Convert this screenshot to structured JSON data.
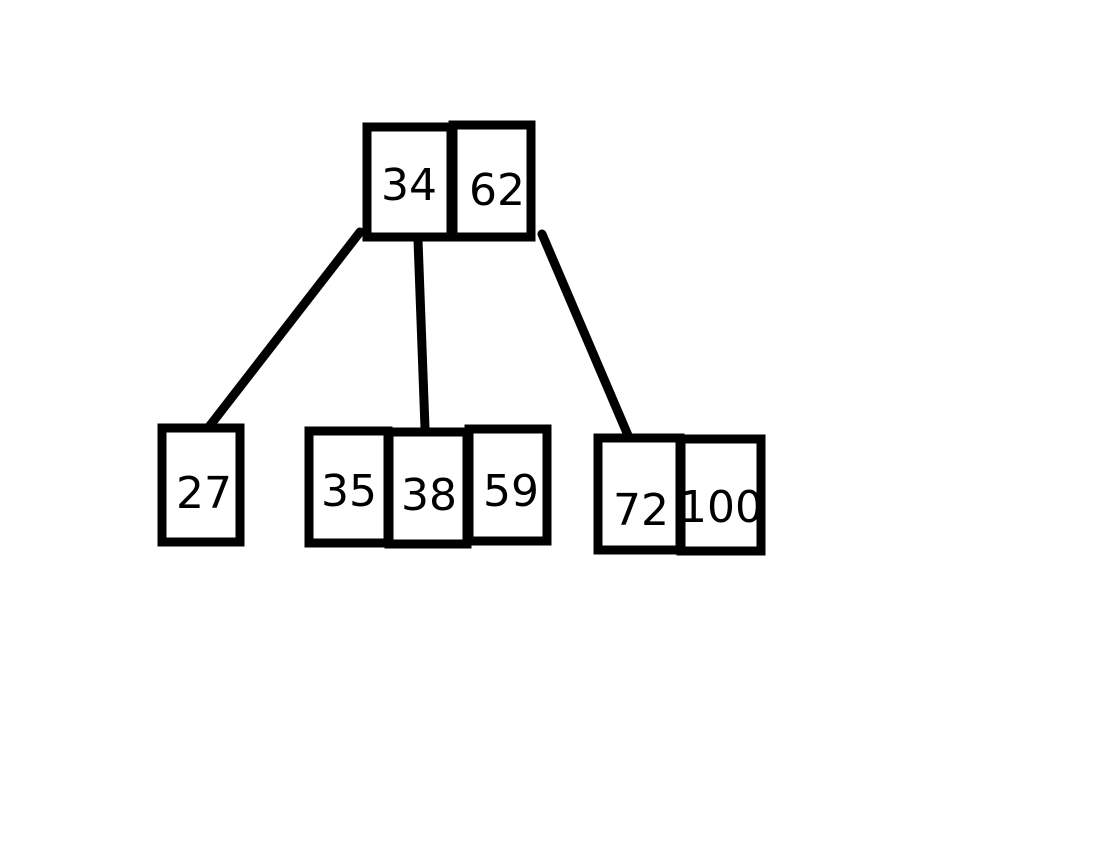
{
  "tree": {
    "root": {
      "keys": [
        "34",
        "62"
      ]
    },
    "children": [
      {
        "keys": [
          "27"
        ]
      },
      {
        "keys": [
          "35",
          "38",
          "59"
        ]
      },
      {
        "keys": [
          "72",
          "100"
        ]
      }
    ]
  }
}
